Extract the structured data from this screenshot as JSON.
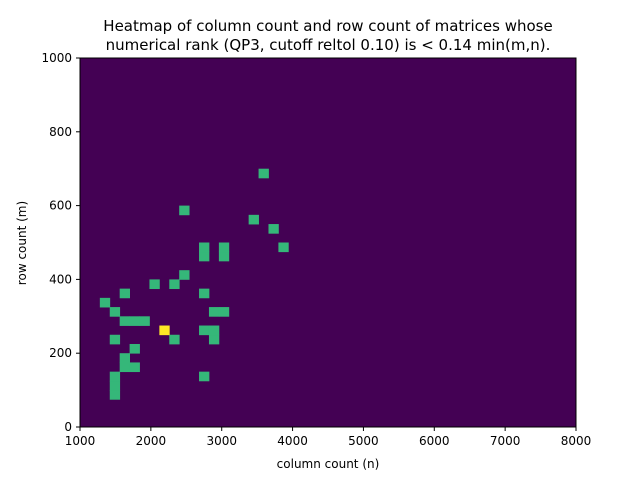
{
  "chart_data": {
    "type": "heatmap",
    "title_line1": "Heatmap of column count and row count of matrices whose",
    "title_line2": "numerical rank (QP3, cutoff reltol 0.10) is < 0.14 min(m,n).",
    "xlabel": "column count (n)",
    "ylabel": "row count (m)",
    "xlim": [
      1000,
      8000
    ],
    "ylim": [
      0,
      1000
    ],
    "xticks": [
      1000,
      2000,
      3000,
      4000,
      5000,
      6000,
      7000,
      8000
    ],
    "yticks": [
      0,
      200,
      400,
      600,
      800,
      1000
    ],
    "bin_width": 140,
    "bin_height": 25,
    "colors": {
      "background": "#440154",
      "count_1": "#35b779",
      "count_2": "#fde725"
    },
    "cells": [
      {
        "x": 1420,
        "y": 75,
        "count": 1
      },
      {
        "x": 1420,
        "y": 100,
        "count": 1
      },
      {
        "x": 1420,
        "y": 125,
        "count": 1
      },
      {
        "x": 1560,
        "y": 150,
        "count": 1
      },
      {
        "x": 1700,
        "y": 150,
        "count": 1
      },
      {
        "x": 1560,
        "y": 175,
        "count": 1
      },
      {
        "x": 1700,
        "y": 200,
        "count": 1
      },
      {
        "x": 1420,
        "y": 225,
        "count": 1
      },
      {
        "x": 2260,
        "y": 225,
        "count": 1
      },
      {
        "x": 2820,
        "y": 225,
        "count": 1
      },
      {
        "x": 2120,
        "y": 250,
        "count": 2
      },
      {
        "x": 2680,
        "y": 250,
        "count": 1
      },
      {
        "x": 2820,
        "y": 250,
        "count": 1
      },
      {
        "x": 1560,
        "y": 275,
        "count": 1
      },
      {
        "x": 1700,
        "y": 275,
        "count": 1
      },
      {
        "x": 1840,
        "y": 275,
        "count": 1
      },
      {
        "x": 1420,
        "y": 300,
        "count": 1
      },
      {
        "x": 2820,
        "y": 300,
        "count": 1
      },
      {
        "x": 2960,
        "y": 300,
        "count": 1
      },
      {
        "x": 1280,
        "y": 325,
        "count": 1
      },
      {
        "x": 1560,
        "y": 350,
        "count": 1
      },
      {
        "x": 2680,
        "y": 350,
        "count": 1
      },
      {
        "x": 1980,
        "y": 375,
        "count": 1
      },
      {
        "x": 2260,
        "y": 375,
        "count": 1
      },
      {
        "x": 2400,
        "y": 400,
        "count": 1
      },
      {
        "x": 2680,
        "y": 450,
        "count": 1
      },
      {
        "x": 2960,
        "y": 450,
        "count": 1
      },
      {
        "x": 2680,
        "y": 475,
        "count": 1
      },
      {
        "x": 2960,
        "y": 475,
        "count": 1
      },
      {
        "x": 3800,
        "y": 475,
        "count": 1
      },
      {
        "x": 3660,
        "y": 525,
        "count": 1
      },
      {
        "x": 3380,
        "y": 550,
        "count": 1
      },
      {
        "x": 2400,
        "y": 575,
        "count": 1
      },
      {
        "x": 3520,
        "y": 675,
        "count": 1
      },
      {
        "x": 2680,
        "y": 125,
        "count": 1
      }
    ]
  }
}
